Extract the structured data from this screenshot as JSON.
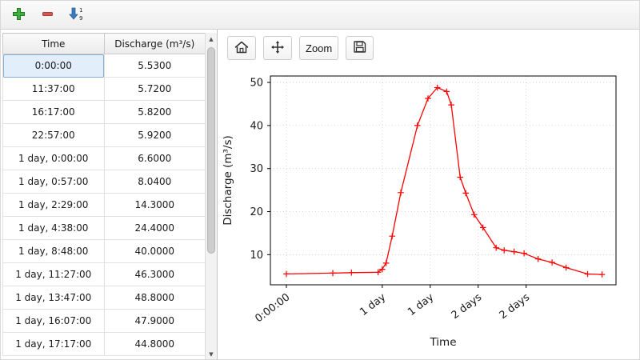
{
  "table_toolbar": {
    "buttons": [
      {
        "name": "add-row-button",
        "icon": "plus-icon"
      },
      {
        "name": "remove-row-button",
        "icon": "minus-icon"
      },
      {
        "name": "sort-rows-button",
        "icon": "sort-numeric-down-icon"
      }
    ]
  },
  "table": {
    "columns": [
      "Time",
      "Discharge (m³/s)"
    ],
    "rows": [
      [
        "0:00:00",
        "5.5300"
      ],
      [
        "11:37:00",
        "5.7200"
      ],
      [
        "16:17:00",
        "5.8200"
      ],
      [
        "22:57:00",
        "5.9200"
      ],
      [
        "1 day, 0:00:00",
        "6.6000"
      ],
      [
        "1 day, 0:57:00",
        "8.0400"
      ],
      [
        "1 day, 2:29:00",
        "14.3000"
      ],
      [
        "1 day, 4:38:00",
        "24.4000"
      ],
      [
        "1 day, 8:48:00",
        "40.0000"
      ],
      [
        "1 day, 11:27:00",
        "46.3000"
      ],
      [
        "1 day, 13:47:00",
        "48.8000"
      ],
      [
        "1 day, 16:07:00",
        "47.9000"
      ],
      [
        "1 day, 17:17:00",
        "44.8000"
      ]
    ],
    "selected": {
      "row": 0,
      "col": 0
    }
  },
  "chart_toolbar": {
    "home_icon": "home-icon",
    "pan_icon": "pan-icon",
    "zoom_label": "Zoom",
    "save_icon": "save-icon"
  },
  "chart_data": {
    "type": "line",
    "title": "",
    "xlabel": "Time",
    "ylabel": "Discharge (m³/s)",
    "line_color": "#ff0000",
    "marker": "+",
    "grid": true,
    "x_unit": "hours",
    "xlim": [
      -4,
      82.5
    ],
    "ylim": [
      3,
      51.5
    ],
    "xticks": [
      {
        "value": 0,
        "label": "0:00:00"
      },
      {
        "value": 24,
        "label": "1 day"
      },
      {
        "value": 36,
        "label": "1 day"
      },
      {
        "value": 48,
        "label": "2 days"
      },
      {
        "value": 60,
        "label": "2 days"
      }
    ],
    "yticks": [
      10,
      20,
      30,
      40,
      50
    ],
    "points": [
      [
        0,
        5.53
      ],
      [
        11.62,
        5.72
      ],
      [
        16.28,
        5.82
      ],
      [
        22.95,
        5.92
      ],
      [
        24.0,
        6.6
      ],
      [
        24.95,
        8.04
      ],
      [
        26.48,
        14.3
      ],
      [
        28.63,
        24.4
      ],
      [
        32.8,
        40.0
      ],
      [
        35.45,
        46.3
      ],
      [
        37.78,
        48.8
      ],
      [
        40.12,
        47.9
      ],
      [
        41.28,
        44.8
      ],
      [
        43.5,
        28.0
      ],
      [
        44.9,
        24.3
      ],
      [
        47.0,
        19.3
      ],
      [
        49.2,
        16.3
      ],
      [
        52.5,
        11.6
      ],
      [
        54.5,
        11.0
      ],
      [
        57.0,
        10.7
      ],
      [
        59.5,
        10.3
      ],
      [
        63.0,
        9.0
      ],
      [
        66.5,
        8.2
      ],
      [
        70.0,
        7.0
      ],
      [
        75.4,
        5.5
      ],
      [
        79.0,
        5.4
      ]
    ]
  }
}
